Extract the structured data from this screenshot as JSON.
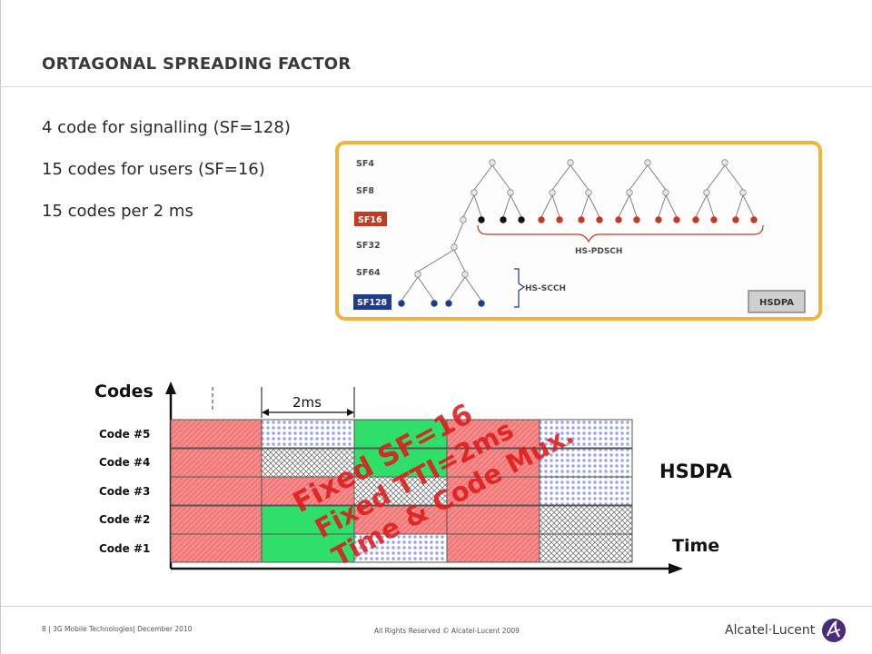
{
  "slide": {
    "title": "ORTAGONAL SPREADING FACTOR",
    "bullets": [
      "4 code for signalling (SF=128)",
      "15 codes for users (SF=16)",
      "15 codes per 2 ms"
    ]
  },
  "tree_diagram": {
    "sf_labels": [
      "SF4",
      "SF8",
      "SF16",
      "SF32",
      "SF64",
      "SF128"
    ],
    "hs_pdsch_label": "HS-PDSCH",
    "hs_scch_label": "HS-SCCH",
    "badge": "HSDPA",
    "colors": {
      "frame": "#f0b43c",
      "sf16": "#c23b22",
      "sf128": "#1f3c8c",
      "pdsch_node": "#c23b22",
      "scch_node": "#1f3c8c"
    }
  },
  "timing_diagram": {
    "y_axis_label": "Codes",
    "x_axis_label": "Time",
    "interval_label": "2ms",
    "code_rows": [
      "Code #5",
      "Code #4",
      "Code #3",
      "Code #2",
      "Code #1"
    ],
    "side_label": "HSDPA",
    "overlay_lines": [
      "Fixed SF=16",
      "Fixed TTI=2ms",
      "Time & Code Mux."
    ],
    "colors": {
      "red": "#f07a7a",
      "blue_dots": "#a8aef0",
      "green": "#2ee06a",
      "overlay": "#e01a1a"
    }
  },
  "footer": {
    "left": "8 | 3G Mobile Technologies| December 2010",
    "center": "All Rights Reserved © Alcatel-Lucent 2009",
    "brand": "Alcatel·Lucent"
  }
}
